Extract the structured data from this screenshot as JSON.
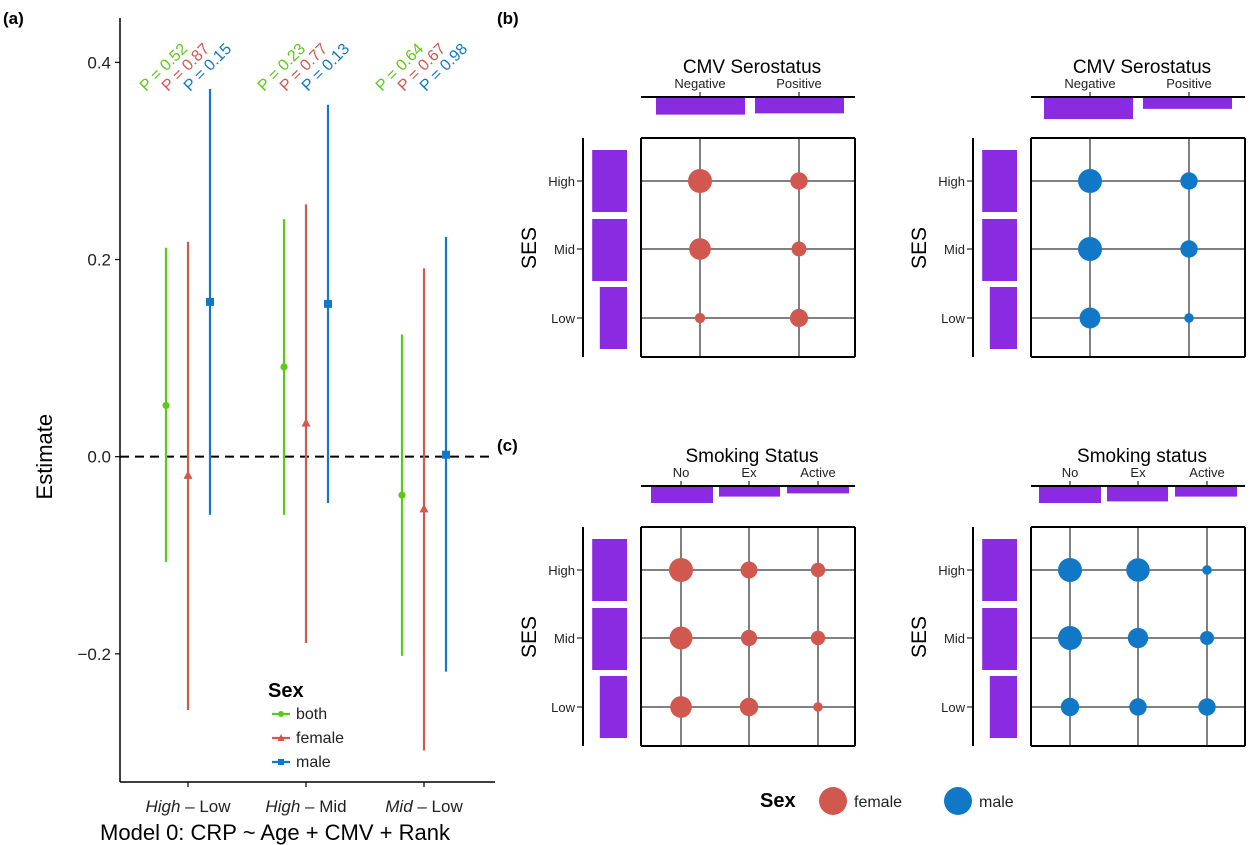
{
  "panel_labels": {
    "a": "(a)",
    "b": "(b)",
    "c": "(c)"
  },
  "colors": {
    "both": "#5cc919",
    "female": "#d1584f",
    "male": "#1178c8",
    "bar": "#8a2be2"
  },
  "chart_data": [
    {
      "type": "errorbar",
      "panel": "(a)",
      "xlabel": "Model 0: CRP ~ Age + CMV + Rank",
      "ylabel": "Estimate",
      "ylim": [
        -0.33,
        0.445
      ],
      "yticks": [
        "0.4",
        "0.2",
        "0.0",
        "−0.2"
      ],
      "ytick_values": [
        0.4,
        0.2,
        0.0,
        -0.2
      ],
      "reference_line": 0,
      "categories": [
        {
          "italic": "High",
          "rest": " – Low"
        },
        {
          "italic": "High",
          "rest": " – Mid"
        },
        {
          "italic": "Mid",
          "rest": " – Low"
        }
      ],
      "series": [
        {
          "name": "both",
          "color": "#5cc919",
          "marker": "circle",
          "estimate": [
            0.052,
            0.091,
            -0.039
          ],
          "lower": [
            -0.107,
            -0.059,
            -0.202
          ],
          "upper": [
            0.212,
            0.241,
            0.124
          ],
          "p_labels": [
            "P = 0.52",
            "P = 0.23",
            "P = 0.64"
          ]
        },
        {
          "name": "female",
          "color": "#d1584f",
          "marker": "triangle",
          "estimate": [
            -0.019,
            0.034,
            -0.053
          ],
          "lower": [
            -0.257,
            -0.189,
            -0.298
          ],
          "upper": [
            0.218,
            0.256,
            0.191
          ],
          "p_labels": [
            "P = 0.87",
            "P = 0.77",
            "P = 0.67"
          ]
        },
        {
          "name": "male",
          "color": "#1178c8",
          "marker": "square",
          "estimate": [
            0.157,
            0.155,
            0.002
          ],
          "lower": [
            -0.059,
            -0.047,
            -0.218
          ],
          "upper": [
            0.373,
            0.357,
            0.223
          ],
          "p_labels": [
            "P = 0.15",
            "P = 0.13",
            "P = 0.98"
          ]
        }
      ],
      "legend": {
        "title": "Sex",
        "position": "bottom-right inside",
        "entries": [
          "both",
          "female",
          "male"
        ]
      }
    },
    {
      "type": "mosaic-balloon",
      "panel": "(b)",
      "sex": "female",
      "color": "#d1584f",
      "title": "CMV Serostatus",
      "ylabel": "SES",
      "columns": [
        "Negative",
        "Positive"
      ],
      "rows": [
        "High",
        "Mid",
        "Low"
      ],
      "column_marginals": [
        0.52,
        0.48
      ],
      "row_marginals": [
        0.87,
        0.87,
        0.68
      ],
      "values": [
        [
          1.0,
          0.45
        ],
        [
          0.78,
          0.3
        ],
        [
          0.1,
          0.5
        ]
      ]
    },
    {
      "type": "mosaic-balloon",
      "panel": "(b)",
      "sex": "male",
      "color": "#1178c8",
      "title": "CMV Serostatus",
      "ylabel": "SES",
      "columns": [
        "Negative",
        "Positive"
      ],
      "rows": [
        "High",
        "Mid",
        "Low"
      ],
      "column_marginals": [
        0.66,
        0.34
      ],
      "row_marginals": [
        0.87,
        0.87,
        0.68
      ],
      "values": [
        [
          1.0,
          0.45
        ],
        [
          1.0,
          0.45
        ],
        [
          0.72,
          0.08
        ]
      ]
    },
    {
      "type": "mosaic-balloon",
      "panel": "(c)",
      "sex": "female",
      "color": "#d1584f",
      "title": "Smoking Status",
      "ylabel": "SES",
      "columns": [
        "No",
        "Ex",
        "Active"
      ],
      "rows": [
        "High",
        "Mid",
        "Low"
      ],
      "column_marginals": [
        0.5,
        0.3,
        0.2
      ],
      "row_marginals": [
        0.87,
        0.87,
        0.68
      ],
      "values": [
        [
          1.0,
          0.42,
          0.27
        ],
        [
          0.9,
          0.37,
          0.27
        ],
        [
          0.78,
          0.52,
          0.08
        ]
      ]
    },
    {
      "type": "mosaic-balloon",
      "panel": "(c)",
      "sex": "male",
      "color": "#1178c8",
      "title": "Smoking status",
      "ylabel": "SES",
      "columns": [
        "No",
        "Ex",
        "Active"
      ],
      "rows": [
        "High",
        "Mid",
        "Low"
      ],
      "column_marginals": [
        0.5,
        0.45,
        0.3
      ],
      "row_marginals": [
        0.87,
        0.87,
        0.68
      ],
      "values": [
        [
          1.0,
          0.95,
          0.08
        ],
        [
          1.0,
          0.67,
          0.25
        ],
        [
          0.52,
          0.45,
          0.45
        ]
      ]
    }
  ],
  "bottom_legend": {
    "title": "Sex",
    "entries": [
      {
        "label": "female",
        "color": "#d1584f"
      },
      {
        "label": "male",
        "color": "#1178c8"
      }
    ]
  }
}
